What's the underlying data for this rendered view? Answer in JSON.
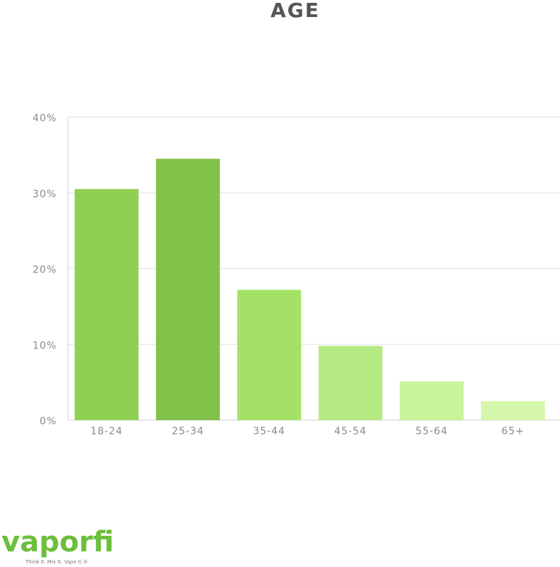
{
  "chart_data": {
    "type": "bar",
    "title": "AGE",
    "categories": [
      "18-24",
      "25-34",
      "35-44",
      "45-54",
      "55-64",
      "65+"
    ],
    "values": [
      30.5,
      34.5,
      17.2,
      9.8,
      5.1,
      2.5
    ],
    "colors": [
      "#8fd053",
      "#82c14a",
      "#a3e266",
      "#b6ea82",
      "#c9f49a",
      "#d5f7ab"
    ],
    "ylim": [
      0,
      40
    ],
    "yticks": [
      {
        "value": 0,
        "label": "0%"
      },
      {
        "value": 10,
        "label": "10%"
      },
      {
        "value": 20,
        "label": "20%"
      },
      {
        "value": 30,
        "label": "30%"
      },
      {
        "value": 40,
        "label": "40%"
      }
    ],
    "grid": true
  },
  "brand": {
    "logo": "vaporfi",
    "tagline": "Think It. Mix It. Vape It.®"
  }
}
